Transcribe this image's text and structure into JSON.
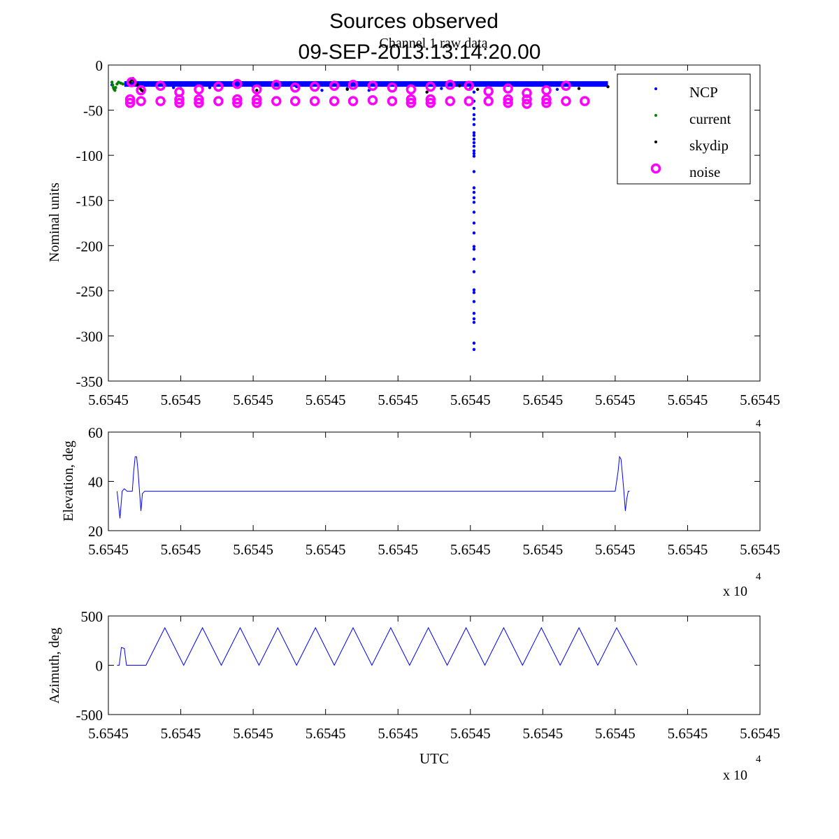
{
  "figure": {
    "title_line1": "Sources observed",
    "title_line2": "09-SEP-2013:13:14:20.00"
  },
  "chart_data": [
    {
      "type": "scatter",
      "subtitle": "Channel 1 raw data",
      "xlabel": "",
      "ylabel": "Nominal units",
      "xlim": [
        0,
        9
      ],
      "ylim": [
        -350,
        0
      ],
      "xticks": [
        0,
        1,
        2,
        3,
        4,
        5,
        6,
        7,
        8,
        9
      ],
      "xtick_labels": [
        "5.6545",
        "5.6545",
        "5.6545",
        "5.6545",
        "5.6545",
        "5.6545",
        "5.6545",
        "5.6545",
        "5.6545",
        "5.6545"
      ],
      "yticks": [
        0,
        -50,
        -100,
        -150,
        -200,
        -250,
        -300,
        -350
      ],
      "ytick_labels": [
        "0",
        "-50",
        "-100",
        "-150",
        "-200",
        "-250",
        "-300",
        "-350"
      ],
      "exponent_label": "4",
      "legend_position": "top-right",
      "series": [
        {
          "name": "NCP",
          "color": "#0000ff",
          "marker": "dot",
          "baseline": {
            "x_start": 0.22,
            "x_end": 6.9,
            "y": -21
          },
          "points": [
            [
              0.05,
              -22
            ],
            [
              0.1,
              -25
            ],
            [
              0.9,
              -25
            ],
            [
              1.4,
              -25
            ],
            [
              2.0,
              -24
            ],
            [
              2.6,
              -24
            ],
            [
              2.95,
              -28
            ],
            [
              3.3,
              -26
            ],
            [
              3.6,
              -28
            ],
            [
              4.6,
              -26
            ],
            [
              5.0,
              -26
            ],
            [
              6.2,
              -27
            ],
            [
              5.05,
              -22
            ],
            [
              5.05,
              -30
            ],
            [
              5.05,
              -40
            ],
            [
              5.05,
              -48
            ],
            [
              5.05,
              -55
            ],
            [
              5.05,
              -60
            ],
            [
              5.05,
              -66
            ],
            [
              5.05,
              -75
            ],
            [
              5.05,
              -78
            ],
            [
              5.05,
              -82
            ],
            [
              5.05,
              -86
            ],
            [
              5.05,
              -90
            ],
            [
              5.05,
              -95
            ],
            [
              5.05,
              -98
            ],
            [
              5.05,
              -101
            ],
            [
              5.05,
              -118
            ],
            [
              5.05,
              -136
            ],
            [
              5.05,
              -141
            ],
            [
              5.05,
              -147
            ],
            [
              5.05,
              -152
            ],
            [
              5.05,
              -163
            ],
            [
              5.05,
              -175
            ],
            [
              5.05,
              -186
            ],
            [
              5.05,
              -201
            ],
            [
              5.05,
              -204
            ],
            [
              5.05,
              -215
            ],
            [
              5.05,
              -229
            ],
            [
              5.05,
              -249
            ],
            [
              5.05,
              -252
            ],
            [
              5.05,
              -262
            ],
            [
              5.05,
              -275
            ],
            [
              5.05,
              -281
            ],
            [
              5.05,
              -285
            ],
            [
              5.05,
              -308
            ],
            [
              5.05,
              -315
            ]
          ]
        },
        {
          "name": "current",
          "color": "#008000",
          "marker": "dot",
          "points": [
            [
              0.05,
              -19
            ],
            [
              0.06,
              -22
            ],
            [
              0.07,
              -25
            ],
            [
              0.08,
              -27
            ],
            [
              0.09,
              -28
            ],
            [
              0.1,
              -25
            ],
            [
              0.12,
              -21
            ],
            [
              0.14,
              -19
            ],
            [
              0.17,
              -20
            ],
            [
              0.2,
              -21
            ],
            [
              0.32,
              -18
            ],
            [
              0.34,
              -17
            ],
            [
              0.35,
              -16
            ]
          ]
        },
        {
          "name": "skydip",
          "color": "#000000",
          "marker": "dot",
          "points": [
            [
              0.3,
              -19
            ],
            [
              0.32,
              -16
            ],
            [
              0.34,
              -15
            ],
            [
              0.36,
              -17
            ],
            [
              0.38,
              -20
            ],
            [
              0.4,
              -22
            ],
            [
              0.42,
              -24
            ],
            [
              0.44,
              -26
            ],
            [
              0.46,
              -28
            ],
            [
              0.48,
              -29
            ],
            [
              1.0,
              -26
            ],
            [
              2.05,
              -28
            ],
            [
              3.3,
              -27
            ],
            [
              4.4,
              -30
            ],
            [
              4.85,
              -23
            ],
            [
              5.1,
              -27
            ],
            [
              6.5,
              -26
            ],
            [
              6.9,
              -24
            ]
          ]
        },
        {
          "name": "noise",
          "color": "#ff00ff",
          "marker": "circle",
          "points": [
            [
              0.32,
              -19
            ],
            [
              0.45,
              -28
            ],
            [
              0.72,
              -23
            ],
            [
              0.98,
              -30
            ],
            [
              1.25,
              -27
            ],
            [
              1.52,
              -24
            ],
            [
              1.78,
              -21
            ],
            [
              2.05,
              -27
            ],
            [
              2.32,
              -22
            ],
            [
              2.58,
              -25
            ],
            [
              2.85,
              -24
            ],
            [
              3.12,
              -23
            ],
            [
              3.38,
              -22
            ],
            [
              3.65,
              -23
            ],
            [
              3.92,
              -25
            ],
            [
              4.18,
              -27
            ],
            [
              4.45,
              -24
            ],
            [
              4.72,
              -22
            ],
            [
              4.98,
              -23
            ],
            [
              5.25,
              -29
            ],
            [
              5.52,
              -26
            ],
            [
              5.78,
              -31
            ],
            [
              6.05,
              -28
            ],
            [
              6.32,
              -23
            ],
            [
              0.3,
              -38
            ],
            [
              0.3,
              -42
            ],
            [
              0.45,
              -40
            ],
            [
              0.72,
              -40
            ],
            [
              0.98,
              -38
            ],
            [
              0.98,
              -42
            ],
            [
              1.25,
              -38
            ],
            [
              1.25,
              -42
            ],
            [
              1.52,
              -40
            ],
            [
              1.78,
              -38
            ],
            [
              1.78,
              -42
            ],
            [
              2.05,
              -38
            ],
            [
              2.05,
              -42
            ],
            [
              2.32,
              -40
            ],
            [
              2.58,
              -40
            ],
            [
              2.85,
              -40
            ],
            [
              3.12,
              -40
            ],
            [
              3.38,
              -40
            ],
            [
              3.65,
              -39
            ],
            [
              3.92,
              -40
            ],
            [
              4.18,
              -38
            ],
            [
              4.18,
              -42
            ],
            [
              4.45,
              -38
            ],
            [
              4.45,
              -42
            ],
            [
              4.72,
              -40
            ],
            [
              4.98,
              -40
            ],
            [
              5.25,
              -40
            ],
            [
              5.52,
              -38
            ],
            [
              5.52,
              -42
            ],
            [
              5.78,
              -38
            ],
            [
              5.78,
              -43
            ],
            [
              6.05,
              -38
            ],
            [
              6.05,
              -42
            ],
            [
              6.32,
              -40
            ],
            [
              6.58,
              -40
            ]
          ]
        }
      ]
    },
    {
      "type": "line",
      "xlabel": "",
      "ylabel": "Elevation, deg",
      "xlim": [
        0,
        9
      ],
      "ylim": [
        20,
        60
      ],
      "xticks": [
        0,
        1,
        2,
        3,
        4,
        5,
        6,
        7,
        8,
        9
      ],
      "xtick_labels": [
        "5.6545",
        "5.6545",
        "5.6545",
        "5.6545",
        "5.6545",
        "5.6545",
        "5.6545",
        "5.6545",
        "5.6545",
        "5.6545"
      ],
      "yticks": [
        20,
        40,
        60
      ],
      "ytick_labels": [
        "20",
        "40",
        "60"
      ],
      "exponent_label": "x 10",
      "exponent_power": "4",
      "series": [
        {
          "color": "#0000ff",
          "x": [
            0.12,
            0.16,
            0.19,
            0.22,
            0.26,
            0.3,
            0.33,
            0.35,
            0.37,
            0.39,
            0.41,
            0.43,
            0.45,
            0.47,
            0.5,
            0.55,
            7.0,
            7.04,
            7.06,
            7.08,
            7.1,
            7.12,
            7.14,
            7.16,
            7.18,
            7.2
          ],
          "y": [
            36,
            25,
            36,
            37,
            36,
            36,
            36,
            44,
            50,
            50,
            44,
            36,
            28,
            35,
            36,
            36,
            36,
            44,
            50,
            49,
            43,
            36,
            28,
            33,
            36,
            36
          ]
        }
      ]
    },
    {
      "type": "line",
      "xlabel": "UTC",
      "ylabel": "Azimuth, deg",
      "xlim": [
        0,
        9
      ],
      "ylim": [
        -500,
        500
      ],
      "xticks": [
        0,
        1,
        2,
        3,
        4,
        5,
        6,
        7,
        8,
        9
      ],
      "xtick_labels": [
        "5.6545",
        "5.6545",
        "5.6545",
        "5.6545",
        "5.6545",
        "5.6545",
        "5.6545",
        "5.6545",
        "5.6545",
        "5.6545"
      ],
      "yticks": [
        500,
        0,
        -500
      ],
      "ytick_labels": [
        "500",
        "0",
        "-500"
      ],
      "exponent_label": "x 10",
      "exponent_power": "4",
      "series": [
        {
          "color": "#0000ff",
          "x": [
            0.12,
            0.15,
            0.18,
            0.22,
            0.25,
            0.28,
            0.5,
            0.52,
            0.78,
            1.04,
            1.3,
            1.56,
            1.82,
            2.08,
            2.34,
            2.6,
            2.86,
            3.12,
            3.38,
            3.64,
            3.9,
            4.16,
            4.42,
            4.68,
            4.94,
            5.2,
            5.46,
            5.72,
            5.98,
            6.24,
            6.5,
            6.76,
            7.02,
            7.3
          ],
          "y": [
            0,
            0,
            180,
            170,
            0,
            0,
            0,
            0,
            380,
            0,
            380,
            0,
            380,
            0,
            380,
            0,
            380,
            0,
            380,
            0,
            380,
            0,
            380,
            0,
            380,
            0,
            380,
            0,
            380,
            0,
            380,
            0,
            380,
            0
          ]
        }
      ]
    }
  ],
  "legend": {
    "items": [
      {
        "name": "NCP",
        "color": "#0000ff",
        "marker": "dot"
      },
      {
        "name": "current",
        "color": "#008000",
        "marker": "dot"
      },
      {
        "name": "skydip",
        "color": "#000000",
        "marker": "dot"
      },
      {
        "name": "noise",
        "color": "#ff00ff",
        "marker": "circle"
      }
    ]
  }
}
